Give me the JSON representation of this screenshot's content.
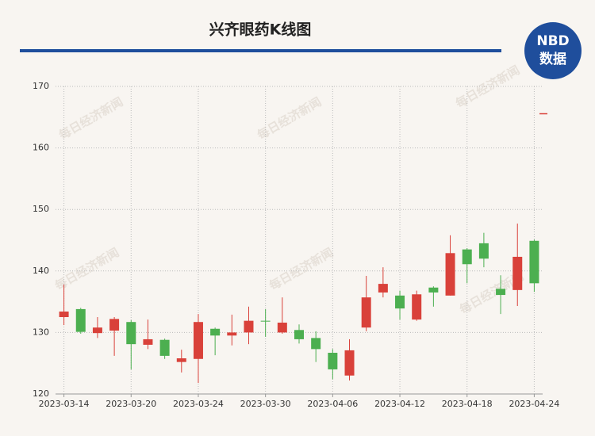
{
  "chart_data": {
    "type": "candlestick",
    "title": "兴齐眼药K线图",
    "logo_top": "NBD",
    "logo_bottom": "数据",
    "watermark": "每日经济新闻",
    "categories": [
      "2023-03-14",
      null,
      null,
      null,
      "2023-03-20",
      null,
      null,
      null,
      "2023-03-24",
      null,
      null,
      null,
      "2023-03-30",
      null,
      null,
      null,
      "2023-04-06",
      null,
      null,
      null,
      "2023-04-12",
      null,
      null,
      null,
      "2023-04-18",
      null,
      null,
      null,
      "2023-04-24"
    ],
    "open": [
      132.5,
      133.8,
      129.9,
      130.3,
      131.7,
      128.0,
      128.8,
      125.2,
      125.7,
      130.6,
      129.5,
      130.0,
      131.9,
      130.0,
      130.4,
      129.1,
      126.7,
      123.0,
      130.8,
      136.5,
      136.0,
      132.1,
      137.3,
      136.0,
      143.5,
      144.5,
      137.1,
      136.9,
      144.9
    ],
    "high": [
      137.8,
      134.0,
      132.5,
      132.5,
      132.0,
      132.1,
      129.0,
      127.2,
      133.0,
      130.8,
      132.9,
      134.2,
      133.8,
      135.7,
      131.3,
      130.2,
      127.3,
      128.9,
      139.2,
      140.6,
      136.8,
      136.8,
      137.5,
      145.8,
      143.7,
      146.2,
      139.3,
      147.7,
      145.1
    ],
    "low": [
      131.2,
      129.8,
      129.1,
      126.2,
      124.0,
      127.3,
      125.7,
      123.5,
      121.8,
      126.3,
      127.9,
      128.1,
      129.3,
      129.8,
      128.2,
      125.2,
      122.4,
      122.2,
      130.2,
      135.7,
      132.1,
      131.9,
      134.2,
      136.0,
      138.0,
      140.6,
      133.0,
      134.3,
      136.6
    ],
    "close": [
      133.4,
      130.1,
      130.8,
      132.2,
      128.1,
      128.9,
      126.2,
      125.8,
      131.7,
      129.5,
      130.0,
      131.9,
      131.8,
      131.6,
      128.9,
      127.3,
      124.0,
      127.1,
      135.7,
      137.9,
      133.9,
      136.2,
      136.5,
      142.9,
      141.1,
      142.0,
      136.1,
      142.3,
      138.0
    ],
    "up_color": "#d9413a",
    "down_color": "#4caf50",
    "ylim": [
      120,
      170
    ],
    "yticks": [
      120,
      130,
      140,
      150,
      160,
      170
    ],
    "grid": true
  }
}
